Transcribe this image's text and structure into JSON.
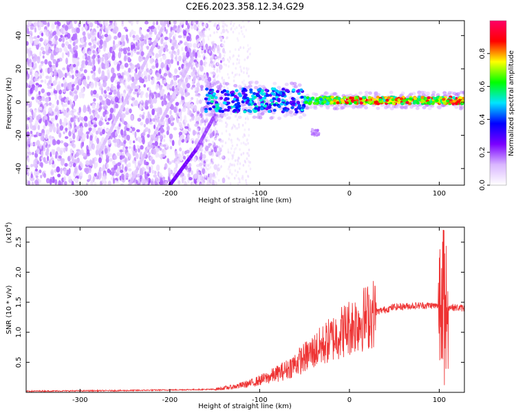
{
  "title": "C2E6.2023.358.12.34.G29",
  "chart_data": [
    {
      "type": "heatmap",
      "xlabel": "Height of straight line (km)",
      "ylabel": "Frequency (Hz)",
      "xlim": [
        -360,
        128
      ],
      "ylim": [
        -50,
        49
      ],
      "xticks": [
        -300,
        -200,
        -100,
        0,
        100
      ],
      "yticks": [
        -40,
        -20,
        0,
        20,
        40
      ],
      "colorbar": {
        "label": "Normalized spectral amplitude",
        "range": [
          0,
          1
        ],
        "ticks": [
          0.0,
          0.2,
          0.4,
          0.6,
          0.8
        ],
        "colors": [
          "#ffffff",
          "#d9b6ff",
          "#7a00ff",
          "#0000ff",
          "#00e5ff",
          "#00ff00",
          "#ffff00",
          "#ff0000",
          "#ff0066"
        ]
      },
      "ridge": {
        "x_start": -160,
        "x_end": 128,
        "freq": 1
      },
      "streaks": [
        {
          "x0": -200,
          "y0": -50,
          "x1": -170,
          "y1": -28,
          "amplitude": 0.25
        },
        {
          "x0": -170,
          "y0": -28,
          "x1": -150,
          "y1": -8,
          "amplitude": 0.2
        },
        {
          "x0": -245,
          "y0": -50,
          "x1": -175,
          "y1": 26,
          "amplitude": 0.1
        },
        {
          "x0": -278,
          "y0": -30,
          "x1": -205,
          "y1": 48,
          "amplitude": 0.1
        }
      ]
    },
    {
      "type": "line",
      "xlabel": "Height of straight line (km)",
      "ylabel": "SNR (10 * v/v)",
      "y_multiplier": "(x10",
      "y_multiplier_exp": "4",
      "xlim": [
        -360,
        128
      ],
      "ylim": [
        0,
        2.75
      ],
      "xticks": [
        -300,
        -200,
        -100,
        0,
        100
      ],
      "yticks": [
        0.5,
        1.0,
        1.5,
        2.0,
        2.5
      ],
      "line_color": "#ee3333",
      "envelope": [
        [
          -360,
          0.02
        ],
        [
          -250,
          0.03
        ],
        [
          -150,
          0.05
        ],
        [
          -130,
          0.09
        ],
        [
          -110,
          0.15
        ],
        [
          -90,
          0.25
        ],
        [
          -70,
          0.38
        ],
        [
          -50,
          0.58
        ],
        [
          -30,
          0.78
        ],
        [
          -10,
          1.0
        ],
        [
          10,
          1.18
        ],
        [
          30,
          1.34
        ],
        [
          50,
          1.42
        ],
        [
          70,
          1.44
        ],
        [
          90,
          1.45
        ],
        [
          100,
          1.43
        ],
        [
          105,
          1.3
        ],
        [
          110,
          1.42
        ],
        [
          128,
          1.4
        ]
      ]
    }
  ]
}
